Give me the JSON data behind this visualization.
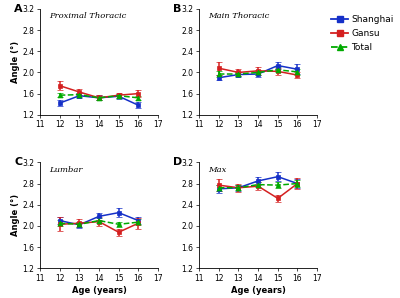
{
  "ages": [
    12,
    13,
    14,
    15,
    16
  ],
  "panels": [
    {
      "label": "A",
      "title": "Proximal Thoracic",
      "shanghai": {
        "means": [
          1.42,
          1.56,
          1.52,
          1.55,
          1.38
        ],
        "errors": [
          0.05,
          0.05,
          0.05,
          0.05,
          0.06
        ]
      },
      "gansu": {
        "means": [
          1.75,
          1.63,
          1.52,
          1.57,
          1.6
        ],
        "errors": [
          0.09,
          0.06,
          0.05,
          0.05,
          0.06
        ]
      },
      "total": {
        "means": [
          1.57,
          1.58,
          1.52,
          1.56,
          1.52
        ],
        "errors": [
          0.04,
          0.04,
          0.04,
          0.04,
          0.04
        ]
      },
      "ylim": [
        1.2,
        3.2
      ],
      "yticks": [
        1.2,
        1.6,
        2.0,
        2.4,
        2.8,
        3.2
      ]
    },
    {
      "label": "B",
      "title": "Main Thoracic",
      "shanghai": {
        "means": [
          1.9,
          1.96,
          1.97,
          2.13,
          2.06
        ],
        "errors": [
          0.05,
          0.05,
          0.05,
          0.07,
          0.09
        ]
      },
      "gansu": {
        "means": [
          2.08,
          2.0,
          2.03,
          2.02,
          1.95
        ],
        "errors": [
          0.12,
          0.07,
          0.07,
          0.07,
          0.06
        ]
      },
      "total": {
        "means": [
          1.97,
          1.97,
          2.0,
          2.05,
          2.01
        ],
        "errors": [
          0.05,
          0.04,
          0.04,
          0.05,
          0.05
        ]
      },
      "ylim": [
        1.2,
        3.2
      ],
      "yticks": [
        1.2,
        1.6,
        2.0,
        2.4,
        2.8,
        3.2
      ]
    },
    {
      "label": "C",
      "title": "Lumbar",
      "shanghai": {
        "means": [
          2.1,
          2.02,
          2.18,
          2.25,
          2.1
        ],
        "errors": [
          0.07,
          0.06,
          0.07,
          0.08,
          0.07
        ]
      },
      "gansu": {
        "means": [
          2.03,
          2.05,
          2.08,
          1.88,
          2.05
        ],
        "errors": [
          0.13,
          0.08,
          0.08,
          0.07,
          0.1
        ]
      },
      "total": {
        "means": [
          2.05,
          2.03,
          2.1,
          2.03,
          2.07
        ],
        "errors": [
          0.06,
          0.05,
          0.05,
          0.05,
          0.06
        ]
      },
      "ylim": [
        1.2,
        3.2
      ],
      "yticks": [
        1.2,
        1.6,
        2.0,
        2.4,
        2.8,
        3.2
      ]
    },
    {
      "label": "D",
      "title": "Max",
      "shanghai": {
        "means": [
          2.7,
          2.72,
          2.85,
          2.93,
          2.8
        ],
        "errors": [
          0.07,
          0.06,
          0.07,
          0.08,
          0.08
        ]
      },
      "gansu": {
        "means": [
          2.77,
          2.72,
          2.75,
          2.52,
          2.8
        ],
        "errors": [
          0.12,
          0.08,
          0.08,
          0.07,
          0.1
        ]
      },
      "total": {
        "means": [
          2.72,
          2.72,
          2.78,
          2.77,
          2.8
        ],
        "errors": [
          0.06,
          0.05,
          0.05,
          0.05,
          0.06
        ]
      },
      "ylim": [
        1.2,
        3.2
      ],
      "yticks": [
        1.2,
        1.6,
        2.0,
        2.4,
        2.8,
        3.2
      ]
    }
  ],
  "colors": {
    "shanghai": "#1530c8",
    "gansu": "#d42020",
    "total": "#00aa00"
  },
  "legend_labels": [
    "Shanghai",
    "Gansu",
    "Total"
  ],
  "xlabel": "Age (years)",
  "ylabel": "Angle (°)",
  "background_color": "#ffffff"
}
